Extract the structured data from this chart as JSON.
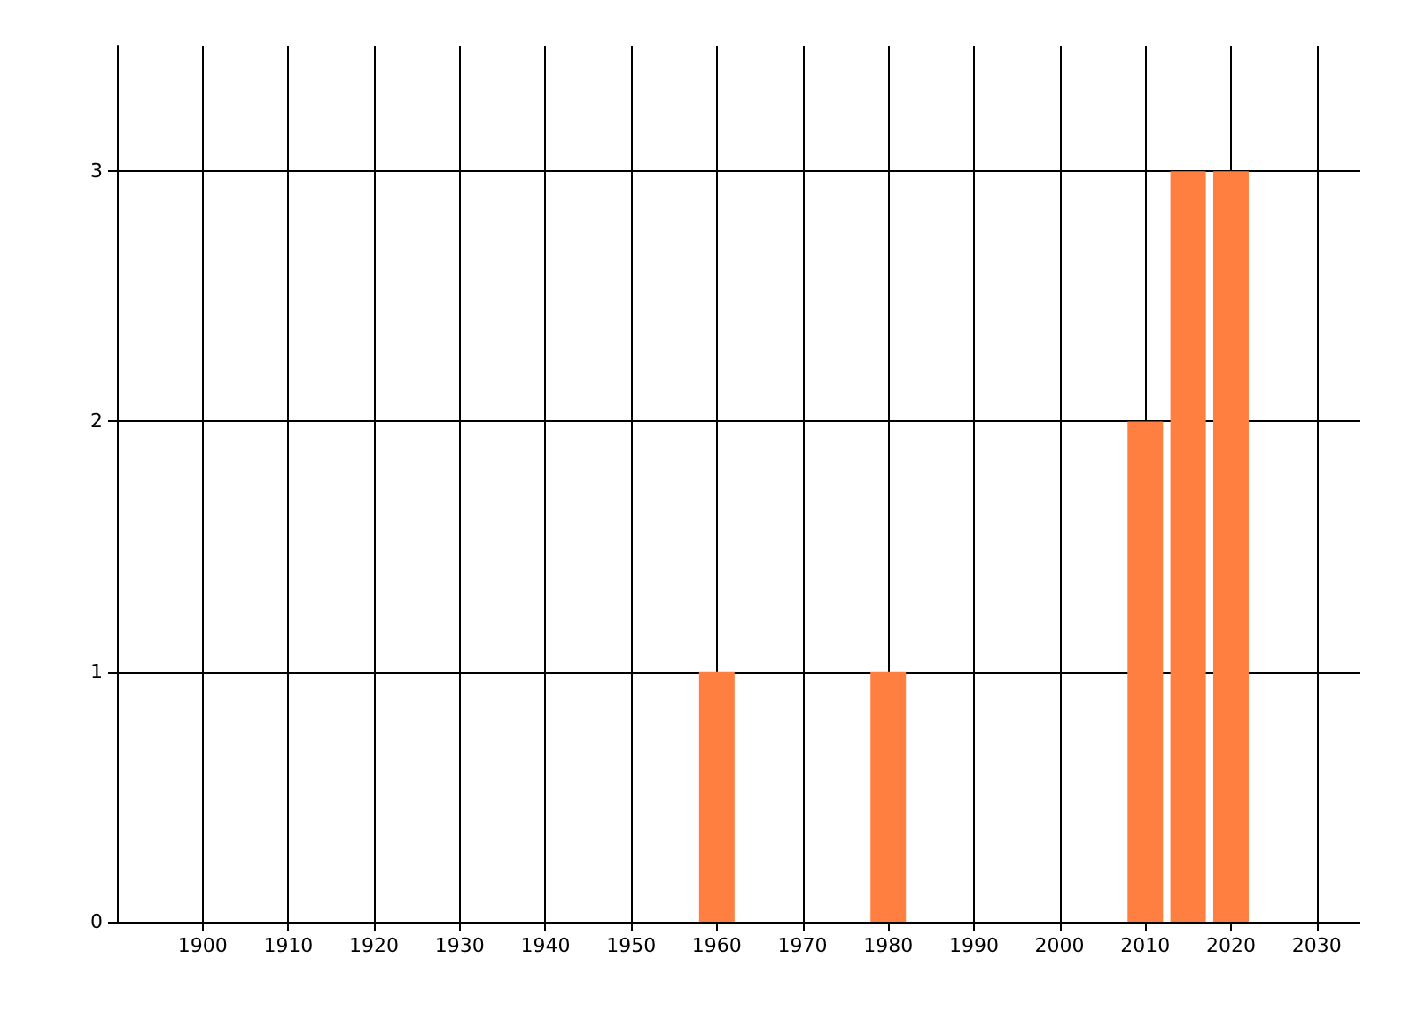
{
  "chart_data": {
    "type": "bar",
    "x": [
      1960,
      1980,
      2010,
      2015,
      2020
    ],
    "values": [
      1,
      1,
      2,
      3,
      3
    ],
    "color": "#ff7f40",
    "xlim": [
      1890,
      2035
    ],
    "xticks": [
      1900,
      1910,
      1920,
      1930,
      1940,
      1950,
      1960,
      1970,
      1980,
      1990,
      2000,
      2010,
      2020,
      2030
    ],
    "ylim": [
      0,
      3.5
    ],
    "yticks": [
      0,
      1,
      2,
      3
    ],
    "grid": true
  }
}
